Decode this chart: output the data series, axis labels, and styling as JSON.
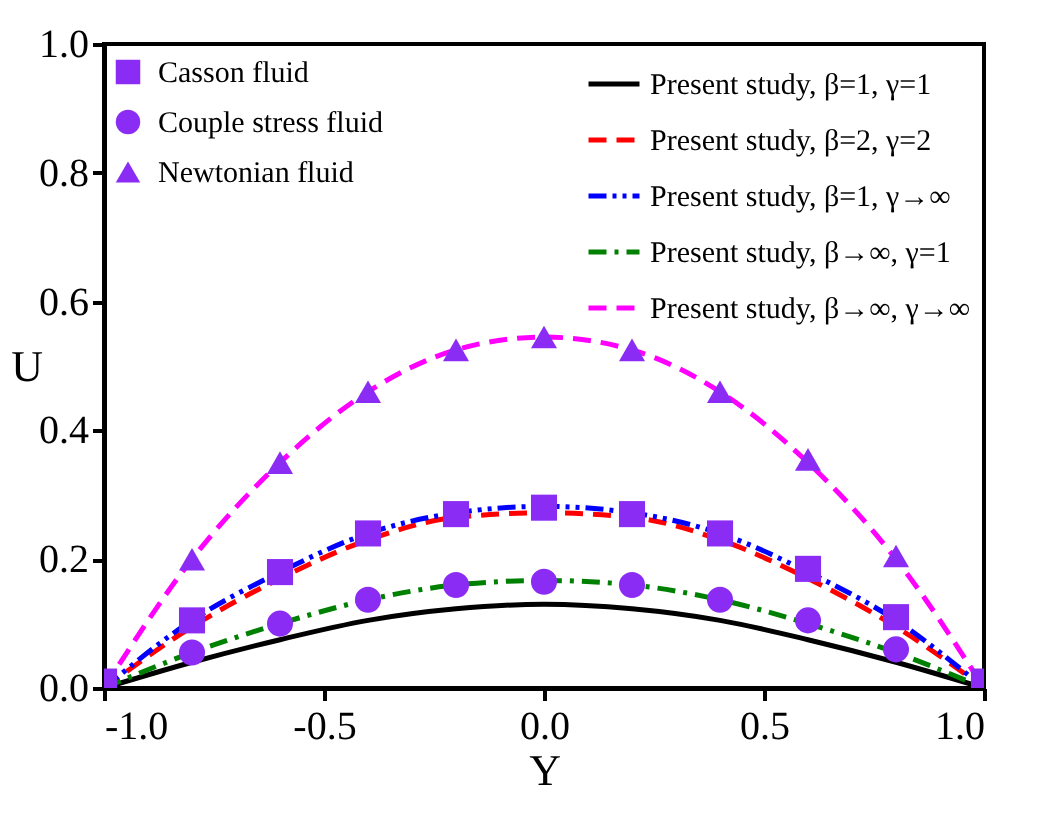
{
  "chart_data": {
    "type": "line",
    "xlabel": "Y",
    "ylabel": "U",
    "xlim": [
      -1.0,
      1.0
    ],
    "ylim": [
      0.0,
      1.0
    ],
    "xticks": [
      {
        "value": -1,
        "label": "-1.0"
      },
      {
        "value": -0.5,
        "label": "-0.5"
      },
      {
        "value": 0,
        "label": "0.0"
      },
      {
        "value": 0.5,
        "label": "0.5"
      },
      {
        "value": 1,
        "label": "1.0"
      }
    ],
    "yticks": [
      {
        "value": 0,
        "label": "0.0"
      },
      {
        "value": 0.2,
        "label": "0.2"
      },
      {
        "value": 0.4,
        "label": "0.4"
      },
      {
        "value": 0.6,
        "label": "0.6"
      },
      {
        "value": 0.8,
        "label": "0.8"
      },
      {
        "value": 1,
        "label": "1.0"
      }
    ],
    "grid": false,
    "legend": "top",
    "series": [
      {
        "name": "Casson fluid",
        "type": "scatter",
        "marker": "square",
        "color": "#8b2cf5",
        "x": [
          -1,
          -0.8,
          -0.6,
          -0.4,
          -0.2,
          0,
          0.2,
          0.4,
          0.6,
          0.8,
          1
        ],
        "values": [
          0.01,
          0.105,
          0.18,
          0.24,
          0.27,
          0.28,
          0.27,
          0.24,
          0.185,
          0.11,
          0.01
        ]
      },
      {
        "name": "Couple stress fluid",
        "type": "scatter",
        "marker": "circle",
        "color": "#8b2cf5",
        "x": [
          -0.8,
          -0.6,
          -0.4,
          -0.2,
          0,
          0.2,
          0.4,
          0.6,
          0.8
        ],
        "values": [
          0.055,
          0.1,
          0.137,
          0.16,
          0.165,
          0.16,
          0.137,
          0.105,
          0.06
        ]
      },
      {
        "name": "Newtonian fluid",
        "type": "scatter",
        "marker": "triangle",
        "color": "#8b2cf5",
        "x": [
          -0.8,
          -0.6,
          -0.4,
          -0.2,
          0,
          0.2,
          0.4,
          0.6,
          0.8
        ],
        "values": [
          0.2,
          0.35,
          0.46,
          0.525,
          0.545,
          0.525,
          0.46,
          0.355,
          0.205
        ]
      },
      {
        "name": "Present study, β=1, γ=1",
        "line_style": "solid",
        "color": "#000000",
        "x": [
          -1,
          -0.8,
          -0.6,
          -0.4,
          -0.2,
          0,
          0.2,
          0.4,
          0.6,
          0.8,
          1
        ],
        "values": [
          0,
          0.04,
          0.075,
          0.105,
          0.123,
          0.13,
          0.123,
          0.105,
          0.075,
          0.04,
          0
        ]
      },
      {
        "name": "Present study, β=2, γ=2",
        "line_style": "dashed",
        "color": "#ff0000",
        "x": [
          -1,
          -0.8,
          -0.6,
          -0.4,
          -0.2,
          0,
          0.2,
          0.4,
          0.6,
          0.8,
          1
        ],
        "values": [
          0,
          0.095,
          0.17,
          0.23,
          0.265,
          0.272,
          0.265,
          0.23,
          0.17,
          0.095,
          0
        ]
      },
      {
        "name": "Present study, β=1, γ→∞",
        "line_style": "dashdotdot",
        "color": "#0000ff",
        "x": [
          -1,
          -0.8,
          -0.6,
          -0.4,
          -0.2,
          0,
          0.2,
          0.4,
          0.6,
          0.8,
          1
        ],
        "values": [
          0,
          0.105,
          0.18,
          0.24,
          0.272,
          0.282,
          0.272,
          0.24,
          0.18,
          0.105,
          0
        ]
      },
      {
        "name": "Present study, β→∞, γ=1",
        "line_style": "dashdot",
        "color": "#008000",
        "x": [
          -1,
          -0.8,
          -0.6,
          -0.4,
          -0.2,
          0,
          0.2,
          0.4,
          0.6,
          0.8,
          1
        ],
        "values": [
          0,
          0.055,
          0.1,
          0.137,
          0.16,
          0.167,
          0.16,
          0.137,
          0.1,
          0.055,
          0
        ]
      },
      {
        "name": "Present study, β→∞, γ→∞",
        "line_style": "dashed",
        "color": "#ff00ff",
        "x": [
          -1,
          -0.8,
          -0.6,
          -0.4,
          -0.2,
          0,
          0.2,
          0.4,
          0.6,
          0.8,
          1
        ],
        "values": [
          0,
          0.2,
          0.35,
          0.46,
          0.525,
          0.545,
          0.525,
          0.46,
          0.35,
          0.2,
          0
        ]
      }
    ]
  }
}
